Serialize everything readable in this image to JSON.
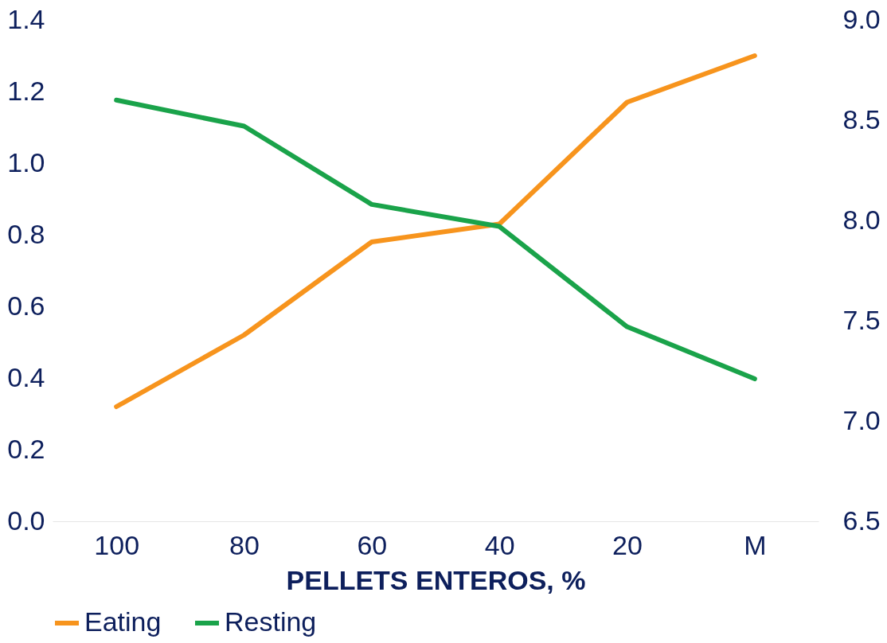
{
  "chart_data": {
    "type": "line",
    "xlabel": "PELLETS ENTEROS, %",
    "categories": [
      "100",
      "80",
      "60",
      "40",
      "20",
      "M"
    ],
    "series": [
      {
        "name": "Eating",
        "color": "#f7941d",
        "values": [
          0.32,
          0.52,
          0.78,
          0.83,
          1.17,
          1.3
        ]
      },
      {
        "name": "Resting",
        "color": "#1aa34a",
        "axis": "y2",
        "values": [
          8.6,
          8.47,
          8.08,
          7.97,
          7.47,
          7.21
        ]
      }
    ],
    "ylim": [
      0,
      1.4
    ],
    "yticks": [
      {
        "value": 0,
        "label": "0.0"
      },
      {
        "value": 0.2,
        "label": "0.2"
      },
      {
        "value": 0.4,
        "label": "0.4"
      },
      {
        "value": 0.6,
        "label": "0.6"
      },
      {
        "value": 0.8,
        "label": "0.8"
      },
      {
        "value": 1.0,
        "label": "1.0"
      },
      {
        "value": 1.2,
        "label": "1.2"
      },
      {
        "value": 1.4,
        "label": "1.4"
      }
    ],
    "y2lim": [
      6.5,
      9.0
    ],
    "y2ticks": [
      {
        "value": 6.5,
        "label": "6.5"
      },
      {
        "value": 7.0,
        "label": "7.0"
      },
      {
        "value": 7.5,
        "label": "7.5"
      },
      {
        "value": 8.0,
        "label": "8.0"
      },
      {
        "value": 8.5,
        "label": "8.5"
      },
      {
        "value": 9.0,
        "label": "9.0"
      }
    ],
    "legend": "bottom",
    "grid": false,
    "marker": "none",
    "line_style": "solid"
  }
}
